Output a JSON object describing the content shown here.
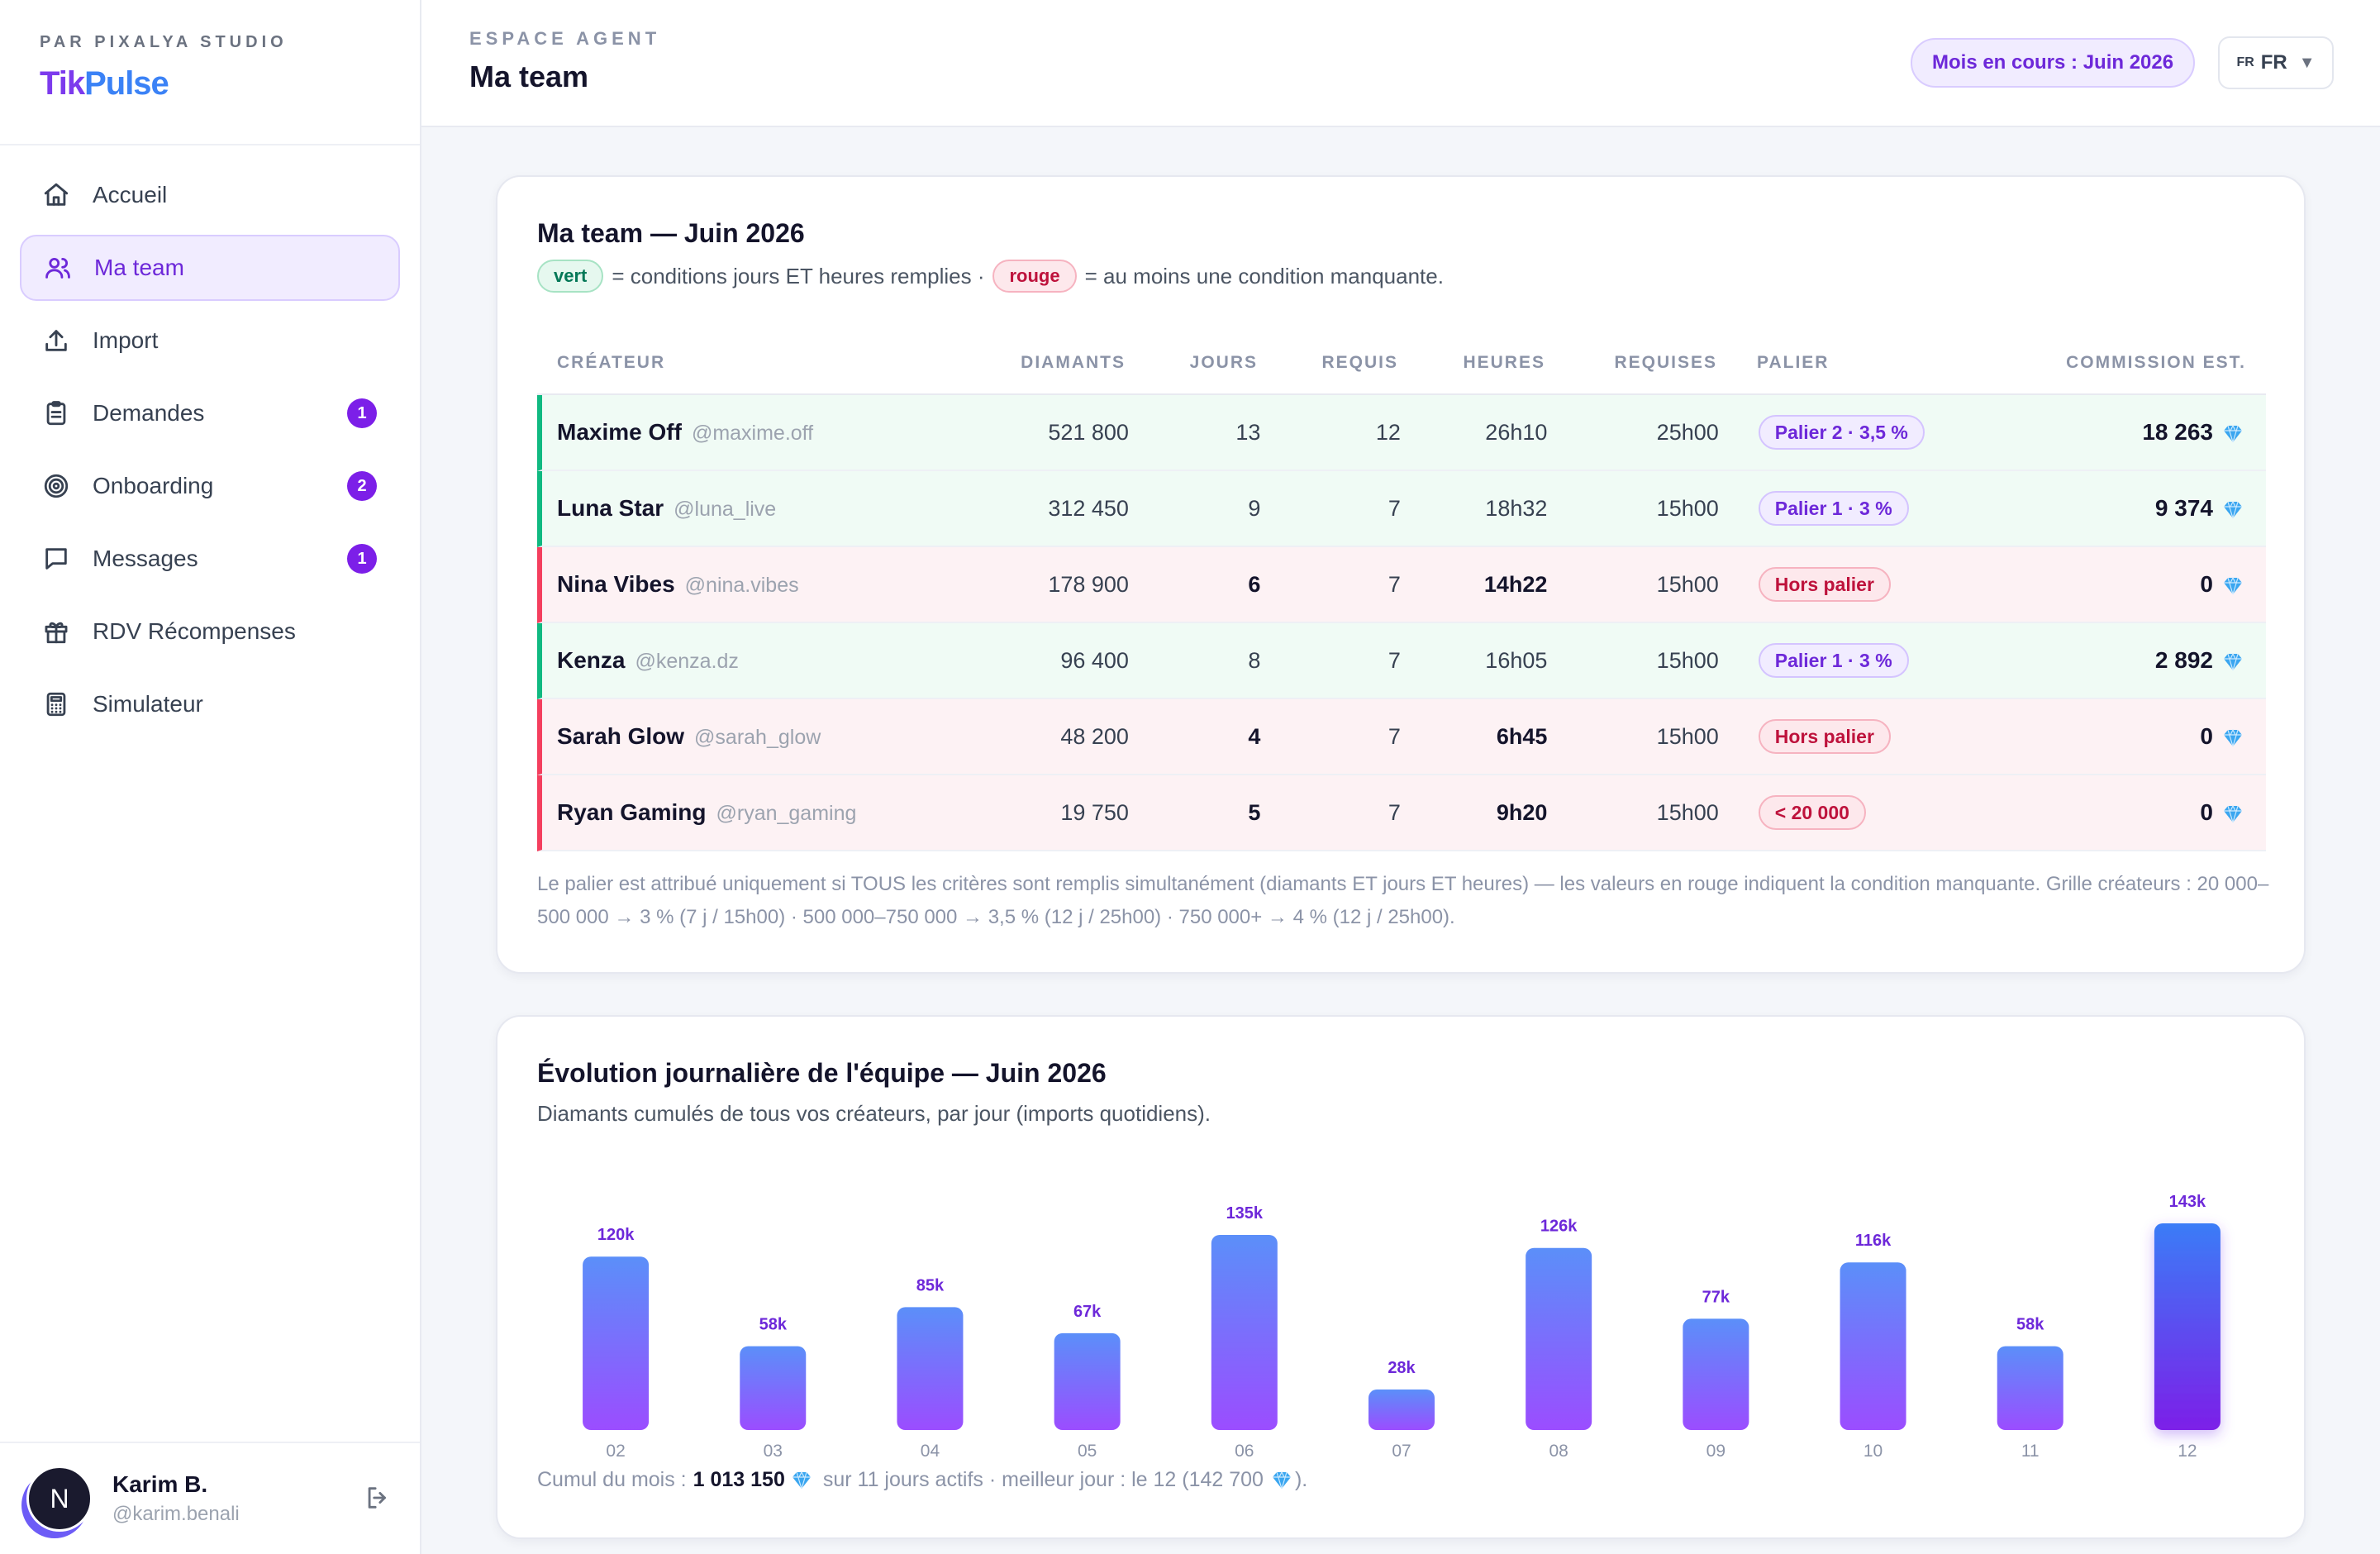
{
  "sidebar": {
    "brand_by": "PAR PIXALYA STUDIO",
    "brand_a": "Tik",
    "brand_b": "Pulse",
    "items": [
      {
        "label": "Accueil",
        "icon": "home-icon"
      },
      {
        "label": "Ma team",
        "icon": "users-icon"
      },
      {
        "label": "Import",
        "icon": "upload-icon"
      },
      {
        "label": "Demandes",
        "icon": "clipboard-icon",
        "badge": "1"
      },
      {
        "label": "Onboarding",
        "icon": "target-icon",
        "badge": "2"
      },
      {
        "label": "Messages",
        "icon": "message-icon",
        "badge": "1"
      },
      {
        "label": "RDV Récompenses",
        "icon": "gift-icon"
      },
      {
        "label": "Simulateur",
        "icon": "calculator-icon"
      }
    ],
    "user": {
      "initial": "N",
      "name": "Karim B.",
      "handle": "@karim.benali"
    }
  },
  "header": {
    "kicker": "ESPACE AGENT",
    "title": "Ma team",
    "month_pill": "Mois en cours : Juin 2026",
    "lang_flag": "FR",
    "lang_label": "FR"
  },
  "team": {
    "title": "Ma team — Juin 2026",
    "legend_green": "vert",
    "legend_green_text": "= conditions jours ET heures remplies ·",
    "legend_red": "rouge",
    "legend_red_text": "= au moins une condition manquante.",
    "columns": [
      "CRÉATEUR",
      "DIAMANTS",
      "JOURS",
      "REQUIS",
      "HEURES",
      "REQUISES",
      "PALIER",
      "COMMISSION EST."
    ],
    "rows": [
      {
        "name": "Maxime Off",
        "handle": "@maxime.off",
        "diamonds": "521 800",
        "days": "13",
        "req_days": "12",
        "hours": "26h10",
        "req_hours": "25h00",
        "tier": "Palier 2 · 3,5 %",
        "commission": "18 263"
      },
      {
        "name": "Luna Star",
        "handle": "@luna_live",
        "diamonds": "312 450",
        "days": "9",
        "req_days": "7",
        "hours": "18h32",
        "req_hours": "15h00",
        "tier": "Palier 1 · 3 %",
        "commission": "9 374"
      },
      {
        "name": "Nina Vibes",
        "handle": "@nina.vibes",
        "diamonds": "178 900",
        "days": "6",
        "req_days": "7",
        "hours": "14h22",
        "req_hours": "15h00",
        "tier": "Hors palier",
        "commission": "0"
      },
      {
        "name": "Kenza",
        "handle": "@kenza.dz",
        "diamonds": "96 400",
        "days": "8",
        "req_days": "7",
        "hours": "16h05",
        "req_hours": "15h00",
        "tier": "Palier 1 · 3 %",
        "commission": "2 892"
      },
      {
        "name": "Sarah Glow",
        "handle": "@sarah_glow",
        "diamonds": "48 200",
        "days": "4",
        "req_days": "7",
        "hours": "6h45",
        "req_hours": "15h00",
        "tier": "Hors palier",
        "commission": "0"
      },
      {
        "name": "Ryan Gaming",
        "handle": "@ryan_gaming",
        "diamonds": "19 750",
        "days": "5",
        "req_days": "7",
        "hours": "9h20",
        "req_hours": "15h00",
        "tier": "< 20 000",
        "commission": "0"
      }
    ],
    "footnote": "Le palier est attribué uniquement si TOUS les critères sont remplis simultanément (diamants ET jours ET heures) — les valeurs en rouge indiquent la condition manquante. Grille créateurs : 20 000–500 000 → 3 % (7 j / 15h00) · 500 000–750 000 → 3,5 % (12 j / 25h00) · 750 000+ → 4 % (12 j / 25h00)."
  },
  "evolution": {
    "title": "Évolution journalière de l'équipe — Juin 2026",
    "subtitle": "Diamants cumulés de tous vos créateurs, par jour (imports quotidiens).",
    "summary_a": "Cumul du mois :",
    "summary_total": "1 013 150",
    "summary_b": "sur 11 jours actifs · meilleur jour : le 12 (142 700",
    "summary_c": ")."
  },
  "chart_data": {
    "type": "bar",
    "categories": [
      "02",
      "03",
      "04",
      "05",
      "06",
      "07",
      "08",
      "09",
      "10",
      "11",
      "12"
    ],
    "values": [
      120,
      58,
      85,
      67,
      135,
      28,
      126,
      77,
      116,
      58,
      143
    ],
    "data_labels": [
      "120k",
      "58k",
      "85k",
      "67k",
      "135k",
      "28k",
      "126k",
      "77k",
      "116k",
      "58k",
      "143k"
    ],
    "title": "",
    "xlabel": "",
    "ylabel": "",
    "grid": false,
    "legend": "none",
    "highlight_index": 10
  },
  "colors": {
    "accent": "#7c3aed",
    "bar_top": "#5b8ff9",
    "bar_bottom": "#9b4dff",
    "ok": "#10b981",
    "ko": "#f43f5e"
  }
}
